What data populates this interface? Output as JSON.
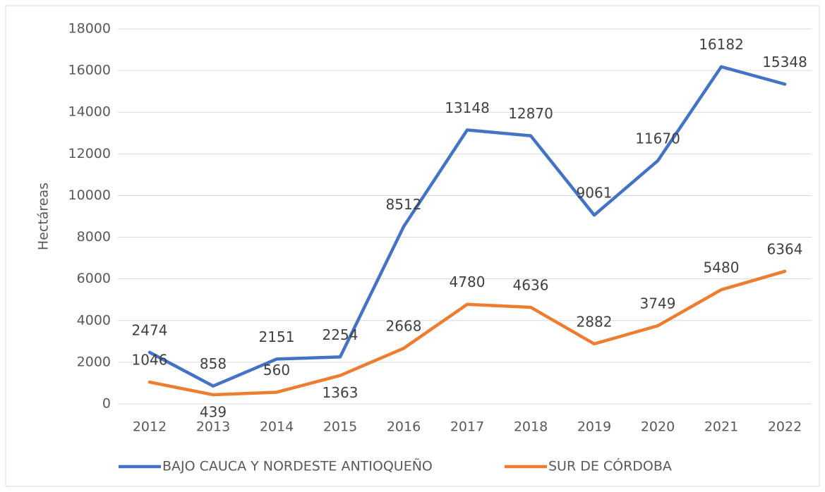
{
  "chart_data": {
    "type": "line",
    "y_label": "Hectáreas",
    "categories": [
      "2012",
      "2013",
      "2014",
      "2015",
      "2016",
      "2017",
      "2018",
      "2019",
      "2020",
      "2021",
      "2022"
    ],
    "series": [
      {
        "name": "BAJO CAUCA Y NORDESTE ANTIOQUEÑO",
        "color": "#4472c4",
        "values": [
          2474,
          858,
          2151,
          2254,
          8512,
          13148,
          12870,
          9061,
          11670,
          16182,
          15348
        ]
      },
      {
        "name": "SUR DE CÓRDOBA",
        "color": "#ed7d31",
        "values": [
          1046,
          439,
          560,
          1363,
          2668,
          4780,
          4636,
          2882,
          3749,
          5480,
          6364
        ]
      }
    ],
    "ylim": [
      0,
      18000
    ],
    "yticks": [
      0,
      2000,
      4000,
      6000,
      8000,
      10000,
      12000,
      14000,
      16000,
      18000
    ],
    "grid": true,
    "legend": "bottom",
    "data_labels": true
  }
}
